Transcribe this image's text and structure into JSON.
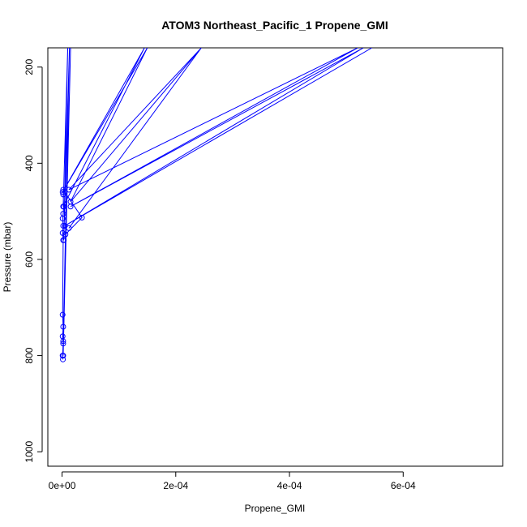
{
  "chart_data": {
    "type": "line",
    "title": "ATOM3 Northeast_Pacific_1 Propene_GMI",
    "xlabel": "Propene_GMI",
    "ylabel": "Pressure (mbar)",
    "xlim": [
      -2.5e-05,
      0.000775
    ],
    "ylim": [
      1030,
      160
    ],
    "y_reversed": true,
    "x_ticks": [
      {
        "value": 0,
        "label": "0e+00"
      },
      {
        "value": 0.0002,
        "label": "2e-04"
      },
      {
        "value": 0.0004,
        "label": "4e-04"
      },
      {
        "value": 0.0006,
        "label": "6e-04"
      }
    ],
    "y_ticks": [
      {
        "value": 200,
        "label": "200"
      },
      {
        "value": 400,
        "label": "400"
      },
      {
        "value": 600,
        "label": "600"
      },
      {
        "value": 800,
        "label": "800"
      },
      {
        "value": 1000,
        "label": "1000"
      }
    ],
    "grid": false,
    "series": [
      {
        "color": "#0000ff",
        "marker": "open-circle",
        "points": [
          {
            "x": 1.5e-06,
            "y": 808
          },
          {
            "x": 1e-06,
            "y": 800
          },
          {
            "x": 2e-06,
            "y": 775
          },
          {
            "x": 1e-06,
            "y": 760
          },
          {
            "x": 2e-06,
            "y": 740
          },
          {
            "x": 1e-06,
            "y": 715
          },
          {
            "x": 2e-06,
            "y": 560
          },
          {
            "x": 1e-06,
            "y": 545
          },
          {
            "x": 2e-06,
            "y": 530
          },
          {
            "x": 1e-06,
            "y": 515
          },
          {
            "x": 2e-06,
            "y": 505
          },
          {
            "x": 3e-06,
            "y": 490
          },
          {
            "x": 2e-06,
            "y": 465
          },
          {
            "x": 2e-06,
            "y": 455
          },
          {
            "x": 3.5e-05,
            "y": 513
          },
          {
            "x": 6e-06,
            "y": 548
          },
          {
            "x": 2e-06,
            "y": 800
          },
          {
            "x": 1.5e-05,
            "y": 160
          },
          {
            "x": 2e-06,
            "y": 770
          },
          {
            "x": 1.3e-05,
            "y": 160
          },
          {
            "x": 3e-06,
            "y": 560
          },
          {
            "x": 1e-05,
            "y": 160
          },
          {
            "x": 2e-06,
            "y": 490
          },
          {
            "x": 0.000145,
            "y": 160
          },
          {
            "x": 1e-06,
            "y": 460
          },
          {
            "x": 0.00015,
            "y": 160
          },
          {
            "x": 1.5e-05,
            "y": 480
          },
          {
            "x": 0.000245,
            "y": 160
          },
          {
            "x": 1.2e-05,
            "y": 535
          },
          {
            "x": 0.000245,
            "y": 160
          },
          {
            "x": 1.2e-05,
            "y": 455
          },
          {
            "x": 0.00052,
            "y": 160
          },
          {
            "x": 1.5e-05,
            "y": 490
          },
          {
            "x": 0.00053,
            "y": 160
          },
          {
            "x": 5e-06,
            "y": 530
          },
          {
            "x": 0.000545,
            "y": 160
          }
        ]
      }
    ]
  }
}
